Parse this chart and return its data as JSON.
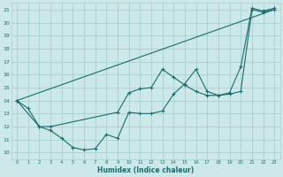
{
  "xlabel": "Humidex (Indice chaleur)",
  "bg_color": "#cde8e8",
  "grid_color": "#aacfcf",
  "line_color": "#1a6b6b",
  "xlim": [
    -0.5,
    23.5
  ],
  "ylim": [
    9.5,
    21.5
  ],
  "xticks": [
    0,
    1,
    2,
    3,
    4,
    5,
    6,
    7,
    8,
    9,
    10,
    11,
    12,
    13,
    14,
    15,
    16,
    17,
    18,
    19,
    20,
    21,
    22,
    23
  ],
  "yticks": [
    10,
    11,
    12,
    13,
    14,
    15,
    16,
    17,
    18,
    19,
    20,
    21
  ],
  "line1_x": [
    0,
    1,
    2,
    3,
    4,
    5,
    6,
    7,
    8,
    9,
    10,
    11,
    12,
    13,
    14,
    15,
    16,
    17,
    18,
    19,
    20,
    21,
    22,
    23
  ],
  "line1_y": [
    14.0,
    13.4,
    12.0,
    11.7,
    11.1,
    10.4,
    10.2,
    10.3,
    11.4,
    11.1,
    13.1,
    13.0,
    13.0,
    13.2,
    14.5,
    15.3,
    16.4,
    14.7,
    14.4,
    14.5,
    14.7,
    21.0,
    20.8,
    21.0
  ],
  "line2_x": [
    0,
    2,
    3,
    9,
    10,
    11,
    12,
    13,
    14,
    15,
    16,
    17,
    18,
    19,
    20,
    21,
    22,
    23
  ],
  "line2_y": [
    14.0,
    12.0,
    12.0,
    13.1,
    14.6,
    14.9,
    15.0,
    16.4,
    15.8,
    15.2,
    14.7,
    14.4,
    14.4,
    14.6,
    16.6,
    21.1,
    20.9,
    21.1
  ],
  "line3_x": [
    0,
    23
  ],
  "line3_y": [
    14.0,
    21.0
  ]
}
